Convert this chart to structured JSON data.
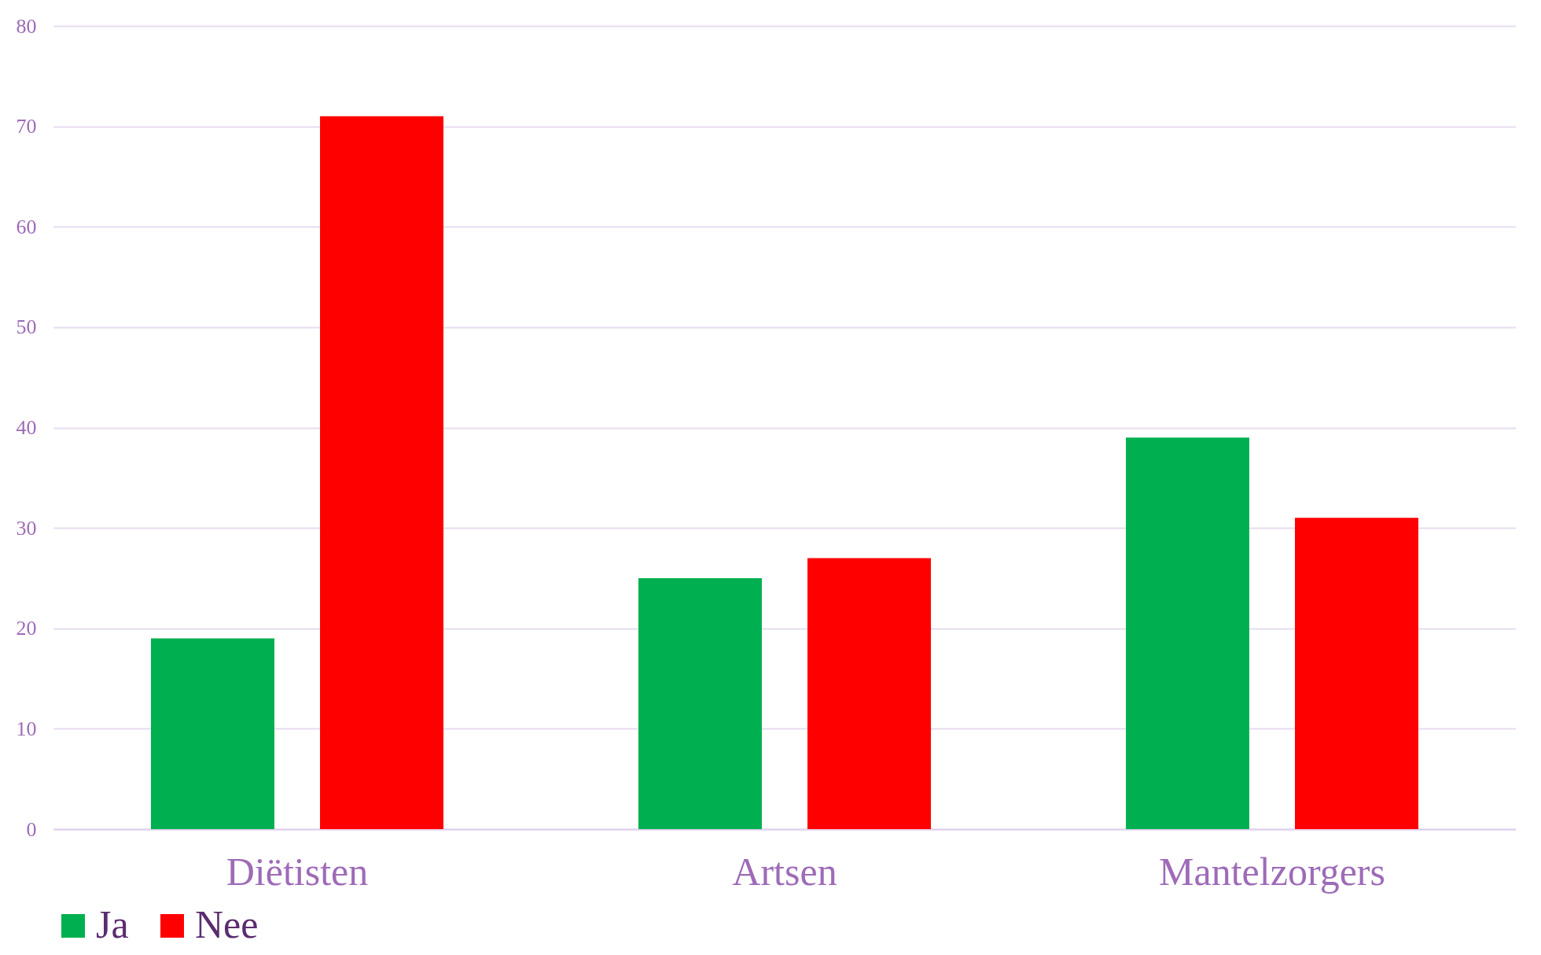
{
  "chart_data": {
    "type": "bar",
    "categories": [
      "Diëtisten",
      "Artsen",
      "Mantelzorgers"
    ],
    "series": [
      {
        "name": "Ja",
        "color": "#00b050",
        "values": [
          19,
          25,
          39
        ]
      },
      {
        "name": "Nee",
        "color": "#ff0000",
        "values": [
          71,
          27,
          31
        ]
      }
    ],
    "ylim": [
      0,
      80
    ],
    "yticks": [
      0,
      10,
      20,
      30,
      40,
      50,
      60,
      70,
      80
    ],
    "grid": "y",
    "legend": "bottom"
  }
}
